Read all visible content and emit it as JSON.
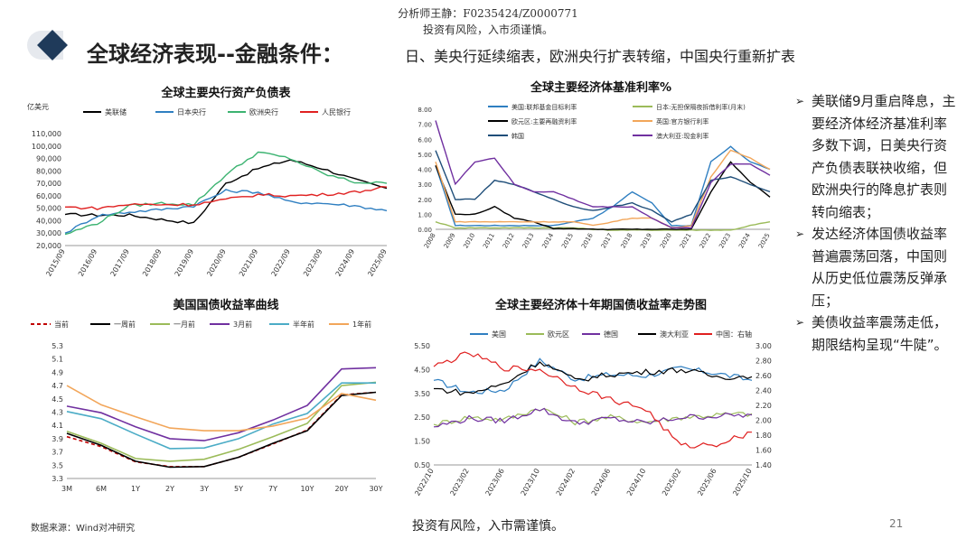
{
  "header": {
    "analyst": "分析师王静：F0235424/Z0000771",
    "risk": "投资有风险，入市须谨慎。",
    "title": "全球经济表现--金融条件：",
    "subtitle": "日、美央行延续缩表，欧洲央行扩表转缩，中国央行重新扩表"
  },
  "bullets": [
    "美联储9月重启降息，主要经济体经济基准利率多数下调，日美央行资产负债表联袂收缩，但欧洲央行的降息扩表则转向缩表；",
    "发达经济体国债收益率普遍震荡回落，中国则从历史低位震荡反弹承压；",
    "美债收益率震荡走低，期限结构呈现“牛陡”。"
  ],
  "footer": {
    "source": "数据来源：Wind对冲研究",
    "risk": "投资有风险，入市需谨慎。",
    "page": "21"
  },
  "colors": {
    "brand": "#1f3a5a",
    "black": "#000000",
    "blue": "#2f7fc1",
    "green": "#3cb371",
    "red": "#e02020",
    "olive": "#9bbb59",
    "orange": "#f2a65a",
    "purple": "#7030a0",
    "teal": "#4bacc6",
    "navy": "#1f4e79"
  },
  "chart_data": [
    {
      "id": "balance-sheet",
      "type": "line",
      "title": "全球主要央行资产负债表",
      "unit": "亿美元",
      "x": [
        "2015/09",
        "2016/09",
        "2017/09",
        "2018/09",
        "2019/09",
        "2020/09",
        "2021/09",
        "2022/09",
        "2023/09",
        "2024/09",
        "2025/09"
      ],
      "yticks": [
        "20,000",
        "30,000",
        "40,000",
        "50,000",
        "60,000",
        "70,000",
        "80,000",
        "90,000",
        "100,000",
        "110,000"
      ],
      "ylim": [
        20000,
        110000
      ],
      "series": [
        {
          "name": "美联储",
          "color": "#000000",
          "values": [
            45000,
            44500,
            44500,
            41000,
            38000,
            70000,
            82000,
            89000,
            82000,
            73000,
            66000
          ]
        },
        {
          "name": "日本央行",
          "color": "#2f7fc1",
          "values": [
            30000,
            44000,
            47000,
            49000,
            52000,
            64000,
            63000,
            55000,
            54000,
            52000,
            48000
          ]
        },
        {
          "name": "欧洲央行",
          "color": "#3cb371",
          "values": [
            29000,
            38000,
            52000,
            54000,
            53000,
            77000,
            95000,
            90000,
            78000,
            71000,
            70000
          ]
        },
        {
          "name": "人民银行",
          "color": "#e02020",
          "values": [
            51000,
            50000,
            53000,
            53000,
            53000,
            57000,
            61000,
            60000,
            61000,
            63000,
            67000
          ]
        }
      ]
    },
    {
      "id": "policy-rates",
      "type": "line",
      "title": "全球主要经济体基准利率%",
      "x": [
        "2008",
        "2009",
        "2010",
        "2011",
        "2012",
        "2013",
        "2014",
        "2015",
        "2016",
        "2017",
        "2018",
        "2019",
        "2020",
        "2021",
        "2022",
        "2023",
        "2024",
        "2025"
      ],
      "yticks": [
        "0.00",
        "1.00",
        "2.00",
        "3.00",
        "4.00",
        "5.00",
        "6.00",
        "7.00",
        "8.00"
      ],
      "ylim": [
        0,
        8
      ],
      "series": [
        {
          "name": "美国:联邦基金目标利率",
          "color": "#2f7fc1",
          "values": [
            4.25,
            0.25,
            0.25,
            0.25,
            0.25,
            0.25,
            0.25,
            0.5,
            0.75,
            1.5,
            2.5,
            1.75,
            0.25,
            0.25,
            4.5,
            5.5,
            4.5,
            4.0
          ]
        },
        {
          "name": "日本:无担保隔夜拆借利率(月末)",
          "color": "#9bbb59",
          "values": [
            0.5,
            0.1,
            0.1,
            0.1,
            0.1,
            0.1,
            0.1,
            0.1,
            0.0,
            -0.05,
            -0.05,
            -0.05,
            -0.05,
            -0.05,
            -0.05,
            -0.05,
            0.25,
            0.5
          ]
        },
        {
          "name": "欧元区:主要再融资利率",
          "color": "#000000",
          "values": [
            4.25,
            1.0,
            1.0,
            1.5,
            0.75,
            0.5,
            0.05,
            0.05,
            0.0,
            0.0,
            0.0,
            0.0,
            0.0,
            0.0,
            2.5,
            4.5,
            3.15,
            2.15
          ]
        },
        {
          "name": "英国:官方银行利率",
          "color": "#f2a65a",
          "values": [
            4.5,
            0.5,
            0.5,
            0.5,
            0.5,
            0.5,
            0.5,
            0.5,
            0.25,
            0.5,
            0.75,
            0.75,
            0.1,
            0.25,
            3.5,
            5.25,
            4.75,
            4.0
          ]
        },
        {
          "name": "韩国",
          "color": "#1f4e79",
          "values": [
            5.25,
            2.0,
            2.0,
            3.25,
            3.0,
            2.5,
            2.0,
            1.5,
            1.25,
            1.5,
            1.75,
            1.25,
            0.5,
            1.0,
            3.25,
            3.5,
            3.0,
            2.5
          ]
        },
        {
          "name": "澳大利亚:现金利率",
          "color": "#7030a0",
          "values": [
            7.25,
            3.0,
            4.5,
            4.75,
            3.0,
            2.5,
            2.5,
            2.0,
            1.5,
            1.5,
            1.5,
            0.75,
            0.1,
            0.1,
            3.1,
            4.35,
            4.35,
            3.6
          ]
        }
      ]
    },
    {
      "id": "ust-curve",
      "type": "line",
      "title": "美国国债收益率曲线",
      "categories": [
        "3M",
        "6M",
        "1Y",
        "2Y",
        "3Y",
        "5Y",
        "7Y",
        "10Y",
        "20Y",
        "30Y"
      ],
      "yticks": [
        "3.3",
        "3.5",
        "3.7",
        "3.9",
        "4.1",
        "4.3",
        "4.5",
        "4.7",
        "4.9",
        "5.1",
        "5.3"
      ],
      "ylim": [
        3.3,
        5.3
      ],
      "series": [
        {
          "name": "当前",
          "color": "#c00000",
          "dashed": true,
          "values": [
            3.93,
            3.78,
            3.55,
            3.48,
            3.48,
            3.62,
            3.82,
            4.03,
            4.56,
            4.6
          ]
        },
        {
          "name": "一周前",
          "color": "#000000",
          "values": [
            3.98,
            3.8,
            3.56,
            3.47,
            3.48,
            3.62,
            3.83,
            4.02,
            4.55,
            4.6
          ]
        },
        {
          "name": "一月前",
          "color": "#9bbb59",
          "values": [
            4.01,
            3.83,
            3.6,
            3.56,
            3.59,
            3.74,
            3.93,
            4.13,
            4.7,
            4.75
          ]
        },
        {
          "name": "3月前",
          "color": "#7030a0",
          "values": [
            4.39,
            4.29,
            4.08,
            3.9,
            3.87,
            3.99,
            4.18,
            4.4,
            4.95,
            4.97
          ]
        },
        {
          "name": "半年前",
          "color": "#4bacc6",
          "values": [
            4.31,
            4.2,
            3.97,
            3.75,
            3.76,
            3.9,
            4.12,
            4.28,
            4.74,
            4.74
          ]
        },
        {
          "name": "1年前",
          "color": "#f2a65a",
          "values": [
            4.7,
            4.41,
            4.23,
            4.06,
            4.02,
            4.02,
            4.09,
            4.21,
            4.58,
            4.48
          ]
        }
      ]
    },
    {
      "id": "ten-year-yields",
      "type": "line",
      "title": "全球主要经济体十年期国债收益率走势图",
      "x": [
        "2022/10",
        "2023/02",
        "2023/06",
        "2023/10",
        "2024/02",
        "2024/06",
        "2024/10",
        "2025/02",
        "2025/06",
        "2025/10"
      ],
      "yticks_left": [
        "0.50",
        "1.50",
        "2.50",
        "3.50",
        "4.50",
        "5.50"
      ],
      "ylim_left": [
        0.5,
        5.5
      ],
      "yticks_right": [
        "1.40",
        "1.60",
        "1.80",
        "2.00",
        "2.20",
        "2.40",
        "2.60",
        "2.80",
        "3.00"
      ],
      "ylim_right": [
        1.4,
        3.0
      ],
      "series": [
        {
          "name": "美国",
          "color": "#2f7fc1",
          "axis": "left",
          "values": [
            4.05,
            3.55,
            3.65,
            4.88,
            4.1,
            4.3,
            4.25,
            4.55,
            4.35,
            4.05
          ]
        },
        {
          "name": "欧元区",
          "color": "#9bbb59",
          "axis": "left",
          "values": [
            2.2,
            2.5,
            2.4,
            2.9,
            2.3,
            2.5,
            2.3,
            2.5,
            2.6,
            2.65
          ]
        },
        {
          "name": "德国",
          "color": "#7030a0",
          "axis": "left",
          "values": [
            2.1,
            2.45,
            2.35,
            2.85,
            2.25,
            2.45,
            2.25,
            2.5,
            2.55,
            2.6
          ]
        },
        {
          "name": "澳大利亚",
          "color": "#000000",
          "axis": "left",
          "values": [
            3.7,
            3.5,
            3.9,
            4.85,
            4.05,
            4.3,
            4.4,
            4.5,
            4.2,
            4.2
          ]
        },
        {
          "name": "中国：右轴",
          "color": "#e02020",
          "axis": "right",
          "values": [
            2.72,
            2.9,
            2.7,
            2.68,
            2.45,
            2.28,
            2.15,
            1.65,
            1.68,
            1.84
          ]
        }
      ]
    }
  ]
}
